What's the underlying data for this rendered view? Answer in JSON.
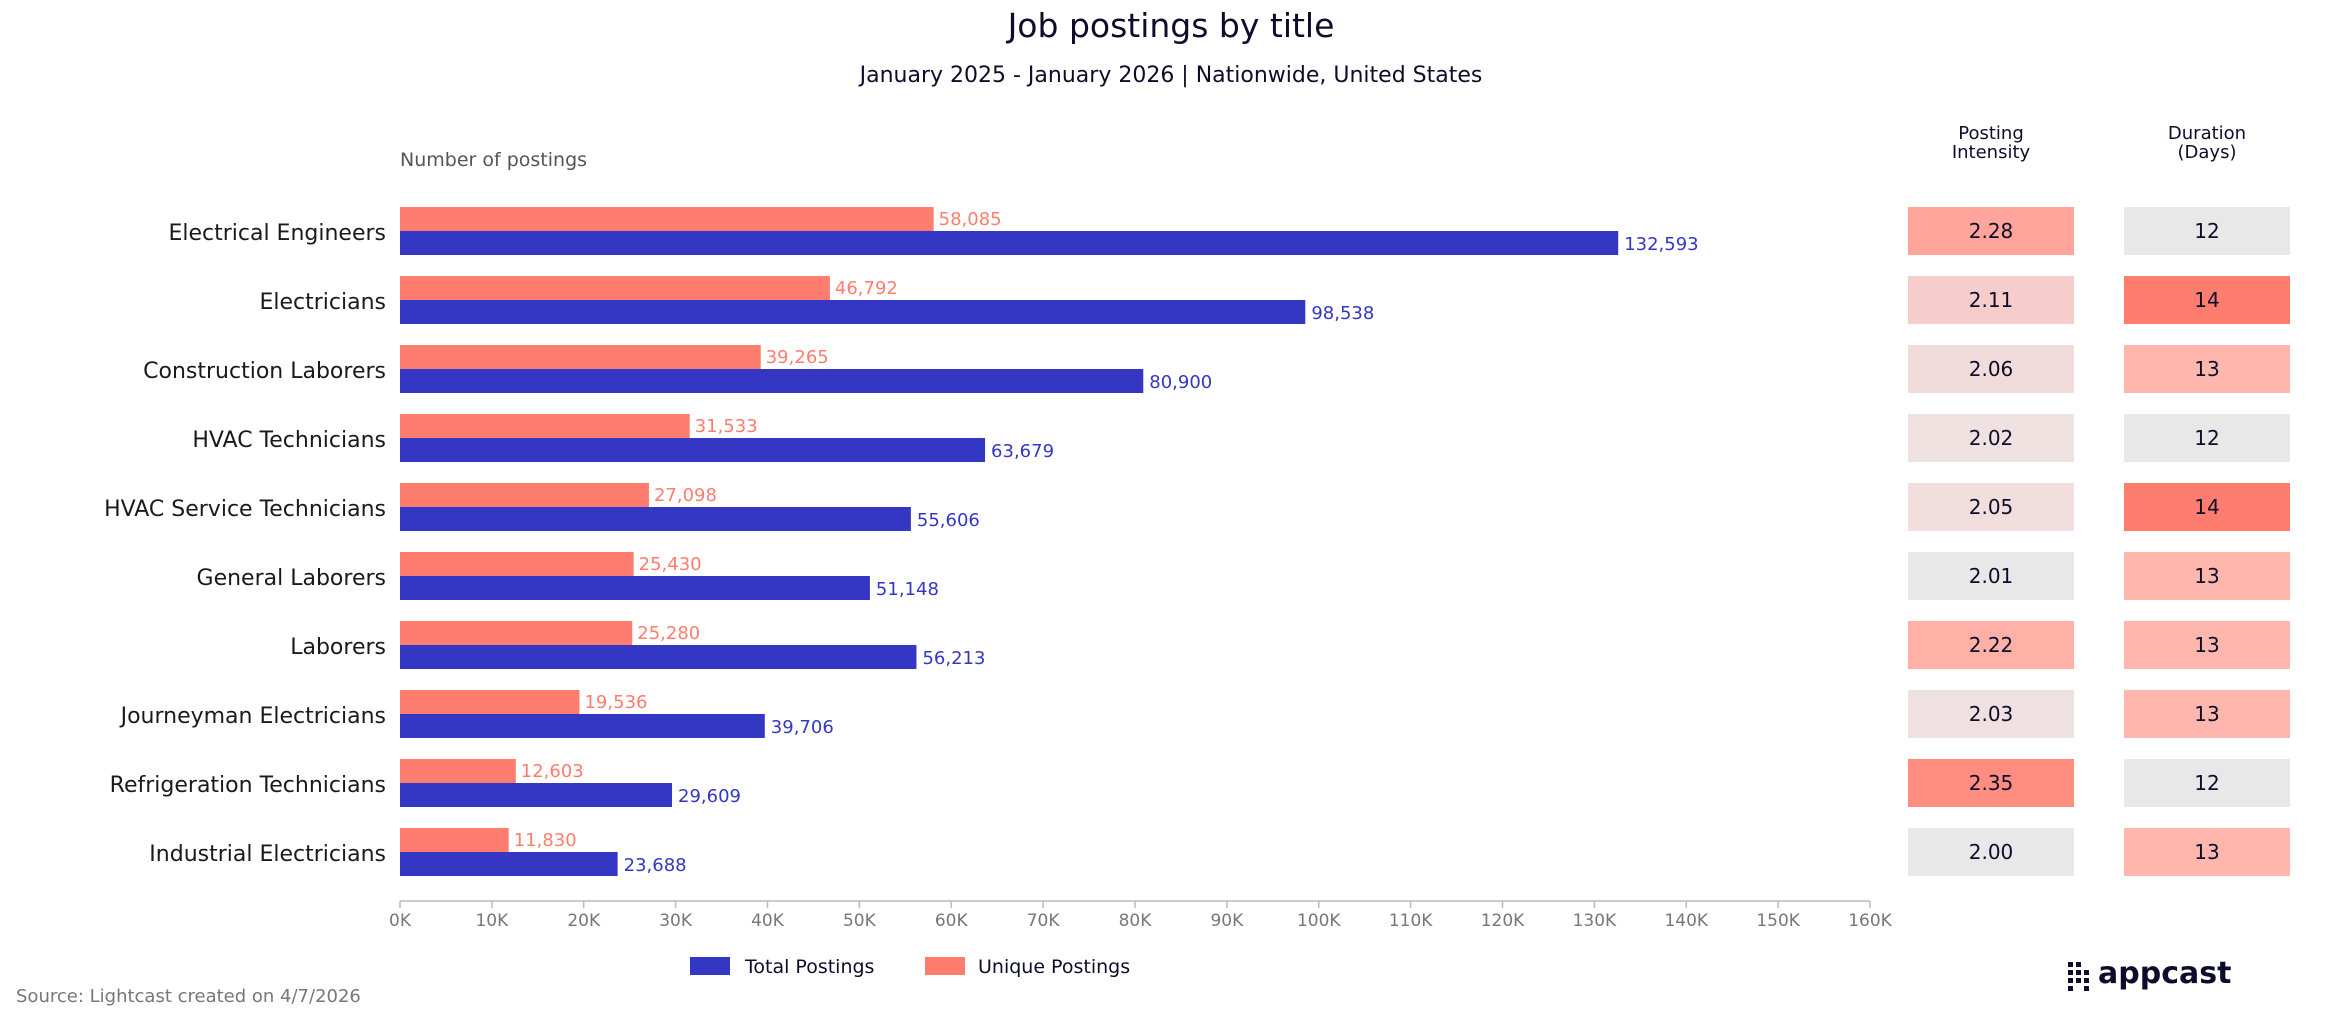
{
  "chart_data": {
    "type": "bar",
    "orientation": "horizontal",
    "title": "Job postings by title",
    "subtitle": "January 2025 - January 2026 | Nationwide, United States",
    "xlabel": "Number of postings",
    "xlim": [
      0,
      160000
    ],
    "ticks": [
      0,
      10000,
      20000,
      30000,
      40000,
      50000,
      60000,
      70000,
      80000,
      90000,
      100000,
      110000,
      120000,
      130000,
      140000,
      150000,
      160000
    ],
    "tick_labels": [
      "0K",
      "10K",
      "20K",
      "30K",
      "40K",
      "50K",
      "60K",
      "70K",
      "80K",
      "90K",
      "100K",
      "110K",
      "120K",
      "130K",
      "140K",
      "150K",
      "160K"
    ],
    "categories": [
      "Electrical Engineers",
      "Electricians",
      "Construction Laborers",
      "HVAC Technicians",
      "HVAC Service Technicians",
      "General Laborers",
      "Laborers",
      "Journeyman Electricians",
      "Refrigeration Technicians",
      "Industrial Electricians"
    ],
    "series": [
      {
        "name": "Unique Postings",
        "color": "#ff7d6e",
        "values": [
          58085,
          46792,
          39265,
          31533,
          27098,
          25430,
          25280,
          19536,
          12603,
          11830
        ],
        "labels": [
          "58,085",
          "46,792",
          "39,265",
          "31,533",
          "27,098",
          "25,430",
          "25,280",
          "19,536",
          "12,603",
          "11,830"
        ]
      },
      {
        "name": "Total Postings",
        "color": "#3337c4",
        "values": [
          132593,
          98538,
          80900,
          63679,
          55606,
          51148,
          56213,
          39706,
          29609,
          23688
        ],
        "labels": [
          "132,593",
          "98,538",
          "80,900",
          "63,679",
          "55,606",
          "51,148",
          "56,213",
          "39,706",
          "29,609",
          "23,688"
        ]
      }
    ],
    "legend_order": [
      "Total Postings",
      "Unique Postings"
    ],
    "legend_position": "bottom",
    "table_columns": [
      {
        "header": [
          "Posting",
          "Intensity"
        ],
        "values": [
          "2.28",
          "2.11",
          "2.06",
          "2.02",
          "2.05",
          "2.01",
          "2.22",
          "2.03",
          "2.35",
          "2.00"
        ],
        "colors": [
          "#ffa59b",
          "#f6cdca",
          "#f2dcdb",
          "#efe2e1",
          "#f1dedd",
          "#e8e8e8",
          "#ffb0a7",
          "#efe1e1",
          "#ff8d80",
          "#e8e8e8"
        ]
      },
      {
        "header": [
          "Duration",
          "(Days)"
        ],
        "values": [
          "12",
          "14",
          "13",
          "12",
          "14",
          "13",
          "13",
          "13",
          "12",
          "13"
        ],
        "colors": [
          "#e8e8e8",
          "#ff7d6e",
          "#ffb6ad",
          "#e8e8e8",
          "#ff7d6e",
          "#ffb6ad",
          "#ffb6ad",
          "#ffb6ad",
          "#e8e8e8",
          "#ffb6ad"
        ]
      }
    ]
  },
  "source": "Source: Lightcast created on 4/7/2026",
  "brand": "appcast"
}
